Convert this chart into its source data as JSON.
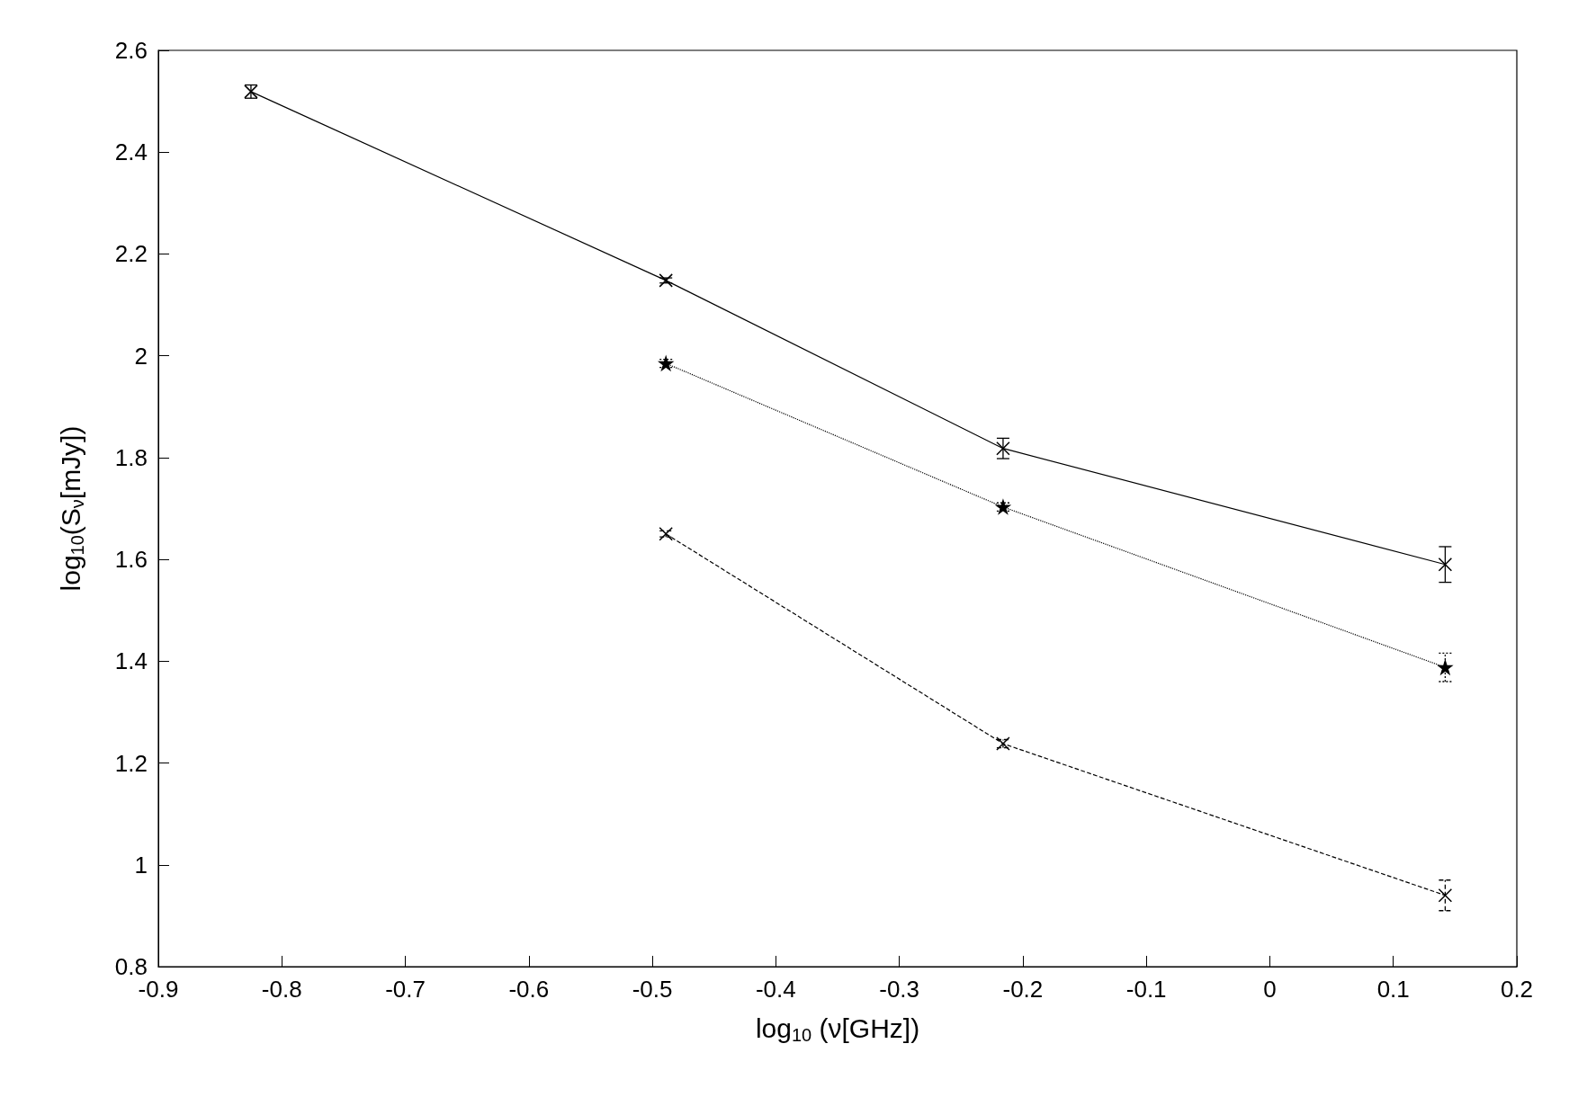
{
  "chart_data": {
    "type": "line",
    "xlabel": "log$_{10}$ (ν[GHz])",
    "ylabel": "log$_{10}$(S$_{ν}$[mJy])",
    "xlim": [
      -0.9,
      0.2
    ],
    "xticks": [
      -0.9,
      -0.8,
      -0.7,
      -0.6,
      -0.5,
      -0.4,
      -0.3,
      -0.2,
      -0.1,
      0,
      0.1,
      0.2
    ],
    "ylim": [
      0.8,
      2.6
    ],
    "yticks": [
      0.8,
      1,
      1.2,
      1.4,
      1.6,
      1.8,
      2,
      2.2,
      2.4,
      2.6
    ],
    "series": [
      {
        "color": "#000000",
        "marker": "cross",
        "line_style": "solid",
        "x": [
          -0.825,
          -0.489,
          -0.216,
          0.142
        ],
        "values": [
          2.519,
          2.148,
          1.818,
          1.59
        ],
        "errors": [
          0.013,
          0.005,
          0.02,
          0.035
        ]
      },
      {
        "color": "#000000",
        "marker": "star",
        "line_style": "dotted",
        "x": [
          -0.489,
          -0.216,
          0.142
        ],
        "values": [
          1.985,
          1.703,
          1.388
        ],
        "errors": [
          0.008,
          0.008,
          0.028
        ]
      },
      {
        "color": "#000000",
        "marker": "cross",
        "line_style": "dashed",
        "x": [
          -0.489,
          -0.216,
          0.142
        ],
        "values": [
          1.65,
          1.238,
          0.94
        ],
        "errors": [
          0.006,
          0.008,
          0.03
        ]
      }
    ]
  }
}
